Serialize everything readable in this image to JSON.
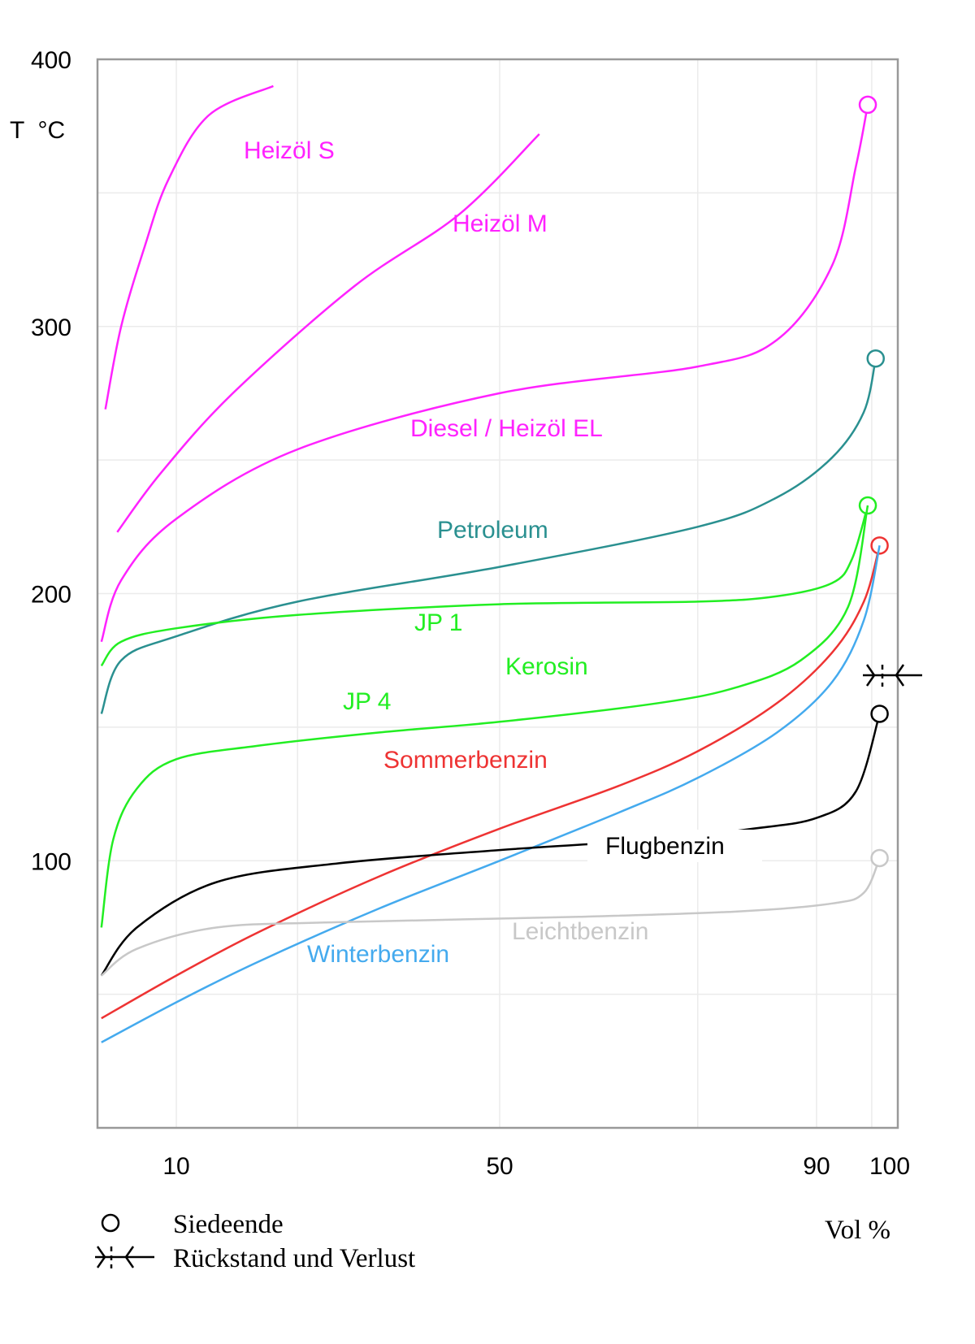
{
  "chart_data": {
    "type": "line",
    "ylabel": "T  °C",
    "xlabel": "Vol %",
    "xlim": [
      0,
      100
    ],
    "ylim": [
      0,
      400
    ],
    "grid": true,
    "x_ticks": [
      10,
      50,
      90,
      100
    ],
    "y_ticks": [
      100,
      200,
      300,
      400
    ],
    "series": [
      {
        "name": "Heizöl S",
        "color": "#ff22ff",
        "end_marker": false,
        "points": [
          [
            1,
            269
          ],
          [
            3,
            300
          ],
          [
            6,
            330
          ],
          [
            9,
            355
          ],
          [
            14,
            379
          ],
          [
            22,
            390
          ]
        ]
      },
      {
        "name": "Heizöl M",
        "color": "#ff22ff",
        "end_marker": false,
        "points": [
          [
            2.5,
            223
          ],
          [
            8,
            245
          ],
          [
            17,
            275
          ],
          [
            32,
            315
          ],
          [
            45,
            342
          ],
          [
            55,
            372
          ]
        ]
      },
      {
        "name": "Diesel / Heizöl EL",
        "color": "#ff22ff",
        "end_marker": true,
        "points": [
          [
            0.5,
            182
          ],
          [
            3,
            205
          ],
          [
            10,
            228
          ],
          [
            25,
            254
          ],
          [
            50,
            275
          ],
          [
            75,
            285
          ],
          [
            85,
            295
          ],
          [
            92,
            323
          ],
          [
            95,
            360
          ],
          [
            96.5,
            383
          ]
        ]
      },
      {
        "name": "Petroleum",
        "color": "#2a9090",
        "end_marker": true,
        "points": [
          [
            0.5,
            155
          ],
          [
            3,
            175
          ],
          [
            10,
            184
          ],
          [
            25,
            197
          ],
          [
            50,
            210
          ],
          [
            75,
            225
          ],
          [
            85,
            236
          ],
          [
            92,
            251
          ],
          [
            96,
            268
          ],
          [
            97.5,
            288
          ]
        ]
      },
      {
        "name": "JP 1",
        "color": "#22ee22",
        "end_marker": true,
        "points": [
          [
            0.5,
            173
          ],
          [
            3,
            182
          ],
          [
            10,
            187
          ],
          [
            25,
            192
          ],
          [
            50,
            196
          ],
          [
            75,
            197
          ],
          [
            85,
            199
          ],
          [
            92,
            204
          ],
          [
            94.5,
            213
          ],
          [
            96.5,
            233
          ]
        ]
      },
      {
        "name": "Kerosin",
        "color": "#22ee22",
        "end_marker": false,
        "points": [
          [
            0.5,
            75
          ],
          [
            2,
            108
          ],
          [
            5,
            127
          ],
          [
            10,
            138
          ],
          [
            20,
            143
          ],
          [
            35,
            148
          ],
          [
            50,
            152
          ],
          [
            70,
            159
          ],
          [
            80,
            165
          ],
          [
            88,
            175
          ],
          [
            94,
            195
          ],
          [
            96.5,
            233
          ]
        ]
      },
      {
        "name": "Sommerbenzin",
        "color": "#ee3333",
        "end_marker": true,
        "points": [
          [
            0.5,
            41
          ],
          [
            10,
            57
          ],
          [
            20,
            73
          ],
          [
            35,
            94
          ],
          [
            50,
            112
          ],
          [
            65,
            128
          ],
          [
            75,
            141
          ],
          [
            85,
            159
          ],
          [
            92,
            178
          ],
          [
            96,
            197
          ],
          [
            98,
            218
          ]
        ]
      },
      {
        "name": "Winterbenzin",
        "color": "#44aaee",
        "end_marker": false,
        "points": [
          [
            0.5,
            32
          ],
          [
            10,
            47
          ],
          [
            20,
            62
          ],
          [
            35,
            82
          ],
          [
            50,
            100
          ],
          [
            65,
            118
          ],
          [
            75,
            131
          ],
          [
            85,
            148
          ],
          [
            92,
            167
          ],
          [
            96,
            190
          ],
          [
            98,
            218
          ]
        ]
      },
      {
        "name": "Flugbenzin",
        "color": "#000000",
        "end_marker": true,
        "points": [
          [
            0.5,
            57
          ],
          [
            5,
            75
          ],
          [
            15,
            92
          ],
          [
            30,
            99
          ],
          [
            50,
            104
          ],
          [
            70,
            108
          ],
          [
            82,
            112
          ],
          [
            90,
            116
          ],
          [
            95,
            126
          ],
          [
            98,
            155
          ]
        ]
      },
      {
        "name": "Leichtbenzin",
        "color": "#c8c8c8",
        "end_marker": true,
        "points": [
          [
            0.5,
            57
          ],
          [
            5,
            67
          ],
          [
            15,
            75
          ],
          [
            30,
            77
          ],
          [
            60,
            79
          ],
          [
            80,
            81
          ],
          [
            92,
            84
          ],
          [
            96,
            88
          ],
          [
            98,
            101
          ]
        ]
      }
    ]
  },
  "legend": {
    "end_label": "Siedeende",
    "residue_label": "Rückstand und Verlust"
  }
}
